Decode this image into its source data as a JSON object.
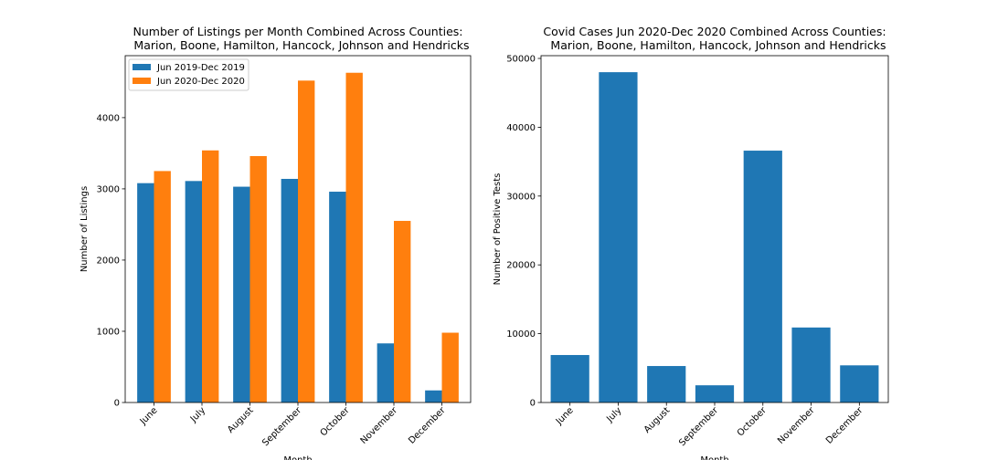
{
  "chart_data": [
    {
      "type": "bar",
      "title": "Number of Listings per Month Combined Across Counties:\n  Marion, Boone, Hamilton, Hancock, Johnson and Hendricks",
      "xlabel": "Month",
      "ylabel": "Number of Listings",
      "categories": [
        "June",
        "July",
        "August",
        "September",
        "October",
        "November",
        "December"
      ],
      "series": [
        {
          "name": "Jun 2019-Dec 2019",
          "color": "#1f77b4",
          "values": [
            3080,
            3110,
            3030,
            3140,
            2960,
            830,
            170
          ]
        },
        {
          "name": "Jun 2020-Dec 2020",
          "color": "#ff7f0e",
          "values": [
            3250,
            3540,
            3460,
            4520,
            4630,
            2550,
            980
          ]
        }
      ],
      "ylim": [
        0,
        4870
      ],
      "yticks": [
        0,
        1000,
        2000,
        3000,
        4000
      ],
      "legend": "top-left",
      "grid": false
    },
    {
      "type": "bar",
      "title": "Covid Cases Jun 2020-Dec 2020 Combined Across Counties:\n  Marion, Boone, Hamilton, Hancock, Johnson and Hendricks",
      "xlabel": "Month",
      "ylabel": "Number of Positive Tests",
      "categories": [
        "June",
        "July",
        "August",
        "September",
        "October",
        "November",
        "December"
      ],
      "series": [
        {
          "color": "#1f77b4",
          "values": [
            6900,
            48000,
            5300,
            2500,
            36600,
            10900,
            5400
          ]
        }
      ],
      "ylim": [
        0,
        50400
      ],
      "yticks": [
        0,
        10000,
        20000,
        30000,
        40000,
        50000
      ],
      "grid": false
    }
  ]
}
